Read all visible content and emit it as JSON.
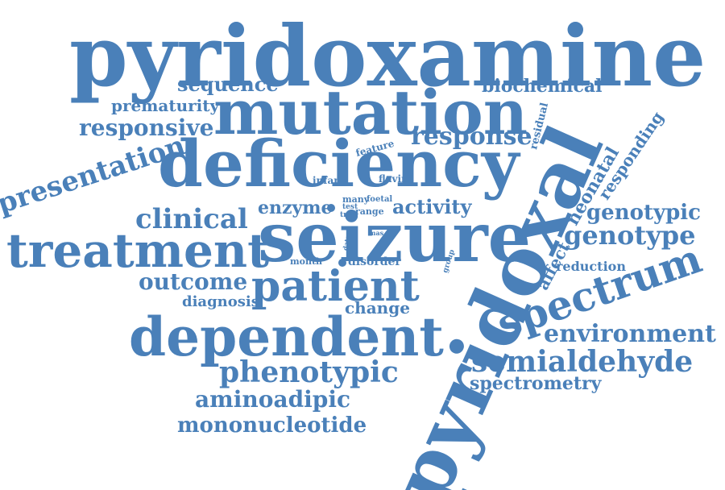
{
  "color": "#4a80b9",
  "words": [
    "pyridoxamine",
    "mutation",
    "deficiency",
    "pyridoxal",
    "seizure",
    "patient",
    "dependent",
    "treatment",
    "phenotypic",
    "spectrum",
    "semialdehyde",
    "environment",
    "genotype",
    "genotypic",
    "aminoadipic",
    "mononucleotide",
    "outcome",
    "clinical",
    "presentation",
    "responsive",
    "response",
    "sequence",
    "prematurity",
    "biochemical",
    "spectrometry",
    "diagnosis",
    "change",
    "activity",
    "enzyme",
    "neonatal",
    "responding",
    "affect",
    "reduction",
    "residual",
    "feature",
    "infant",
    "flavin",
    "many",
    "test",
    "foetal",
    "trial",
    "range",
    "data",
    "mas",
    "month",
    "disorder",
    "group"
  ]
}
